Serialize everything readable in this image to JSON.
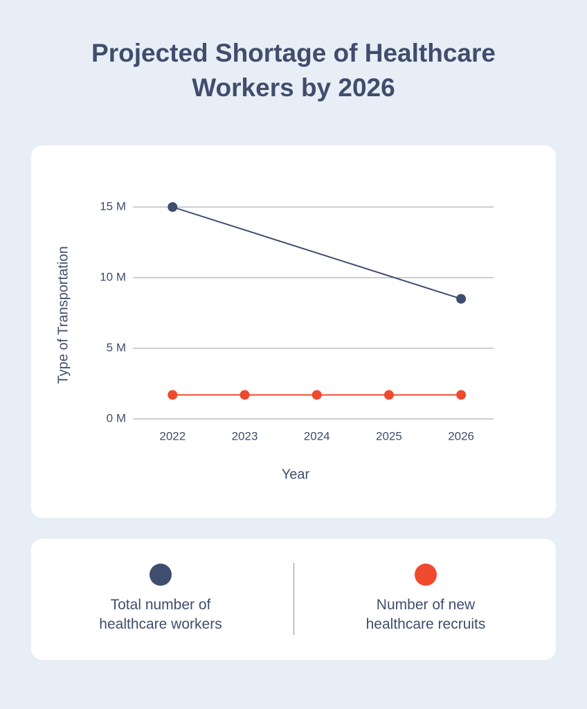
{
  "chart_data": {
    "type": "line",
    "title": "Projected Shortage of Healthcare Workers by 2026",
    "x_label": "Year",
    "y_label": "Type of Transportation",
    "xlim": [
      2021.45,
      2026.45
    ],
    "xticks": [
      2022,
      2023,
      2024,
      2025,
      2026
    ],
    "ylim": [
      0,
      15
    ],
    "yticks": [
      {
        "value": 0,
        "label": "0 M"
      },
      {
        "value": 5,
        "label": "5 M"
      },
      {
        "value": 10,
        "label": "10 M"
      },
      {
        "value": 15,
        "label": "15 M"
      }
    ],
    "grid": true,
    "series": [
      {
        "name": "Total number of healthcare workers",
        "color": "#3f4d6e",
        "x": [
          2022,
          2026
        ],
        "values": [
          15,
          8.5
        ]
      },
      {
        "name": "Number of new healthcare recruits",
        "color": "#ef4a2e",
        "x": [
          2022,
          2023,
          2024,
          2025,
          2026
        ],
        "values": [
          1.7,
          1.7,
          1.7,
          1.7,
          1.7
        ]
      }
    ]
  }
}
